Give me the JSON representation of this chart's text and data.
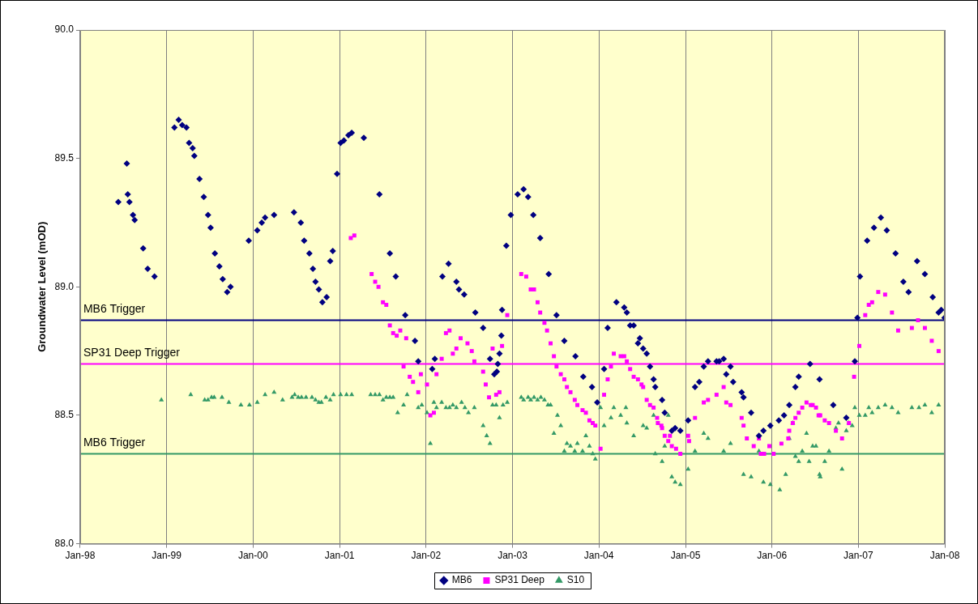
{
  "chart_data": {
    "type": "scatter",
    "ylabel": "Groundwater Level (mOD)",
    "xlim": [
      "1998-01-01",
      "2008-01-01"
    ],
    "xticks": [
      {
        "value": "1998-01-01",
        "label": "Jan-98"
      },
      {
        "value": "1999-01-01",
        "label": "Jan-99"
      },
      {
        "value": "2000-01-01",
        "label": "Jan-00"
      },
      {
        "value": "2001-01-01",
        "label": "Jan-01"
      },
      {
        "value": "2002-01-01",
        "label": "Jan-02"
      },
      {
        "value": "2003-01-01",
        "label": "Jan-03"
      },
      {
        "value": "2004-01-01",
        "label": "Jan-04"
      },
      {
        "value": "2005-01-01",
        "label": "Jan-05"
      },
      {
        "value": "2006-01-01",
        "label": "Jan-06"
      },
      {
        "value": "2007-01-01",
        "label": "Jan-07"
      },
      {
        "value": "2008-01-01",
        "label": "Jan-08"
      }
    ],
    "ylim": [
      88,
      90
    ],
    "yticks": [
      {
        "value": 88,
        "label": "88.0"
      },
      {
        "value": 88.5,
        "label": "88.5"
      },
      {
        "value": 89,
        "label": "89.0"
      },
      {
        "value": 89.5,
        "label": "89.5"
      },
      {
        "value": 90,
        "label": "90.0"
      }
    ],
    "grid": "x",
    "legend": "bottom",
    "series": [
      {
        "name": "MB6",
        "color": "#000080",
        "marker": "diamond",
        "x": [
          "1998-06-11",
          "1998-07-17",
          "1998-07-21",
          "1998-07-28",
          "1998-08-12",
          "1998-08-19",
          "1998-09-24",
          "1998-10-13",
          "1998-11-11",
          "1999-02-03",
          "1999-02-21",
          "1999-03-08",
          "1999-03-26",
          "1999-04-06",
          "1999-04-21",
          "1999-04-28",
          "1999-05-20",
          "1999-06-07",
          "1999-06-25",
          "1999-07-06",
          "1999-07-24",
          "1999-08-12",
          "1999-08-26",
          "1999-09-14",
          "1999-09-28",
          "1999-12-14",
          "2000-01-19",
          "2000-02-07",
          "2000-02-21",
          "2000-03-30",
          "2000-06-22",
          "2000-07-21",
          "2000-08-04",
          "2000-08-26",
          "2000-09-10",
          "2000-09-21",
          "2000-10-05",
          "2000-10-20",
          "2000-11-07",
          "2000-11-22",
          "2000-12-03",
          "2000-12-21",
          "2001-01-05",
          "2001-01-19",
          "2001-02-07",
          "2001-02-21",
          "2001-04-13",
          "2001-06-18",
          "2001-08-01",
          "2001-08-26",
          "2001-10-05",
          "2001-11-15",
          "2001-11-29",
          "2002-01-27",
          "2002-02-07",
          "2002-03-11",
          "2002-04-06",
          "2002-05-09",
          "2002-05-20",
          "2002-06-11",
          "2002-07-28",
          "2002-08-30",
          "2002-09-28",
          "2002-10-16",
          "2002-10-27",
          "2002-10-31",
          "2002-11-07",
          "2002-11-15",
          "2002-11-18",
          "2002-12-06",
          "2002-12-25",
          "2003-01-23",
          "2003-02-17",
          "2003-03-08",
          "2003-03-30",
          "2003-04-28",
          "2003-06-03",
          "2003-07-06",
          "2003-08-08",
          "2003-09-24",
          "2003-10-27",
          "2003-12-03",
          "2003-12-25",
          "2004-01-23",
          "2004-02-07",
          "2004-03-15",
          "2004-04-17",
          "2004-04-28",
          "2004-05-12",
          "2004-05-27",
          "2004-06-14",
          "2004-06-22",
          "2004-07-06",
          "2004-07-21",
          "2004-08-04",
          "2004-08-19",
          "2004-08-26",
          "2004-09-24",
          "2004-10-05",
          "2004-11-04",
          "2004-11-18",
          "2004-12-10",
          "2005-01-12",
          "2005-02-10",
          "2005-02-28",
          "2005-03-19",
          "2005-04-06",
          "2005-05-12",
          "2005-05-23",
          "2005-06-11",
          "2005-06-22",
          "2005-07-10",
          "2005-07-21",
          "2005-08-26",
          "2005-09-03",
          "2005-10-05",
          "2005-11-07",
          "2005-11-26",
          "2005-12-25",
          "2006-01-30",
          "2006-02-21",
          "2006-03-15",
          "2006-04-10",
          "2006-04-24",
          "2006-06-11",
          "2006-07-21",
          "2006-09-17",
          "2006-11-11",
          "2006-12-17",
          "2006-12-28",
          "2007-01-08",
          "2007-02-07",
          "2007-03-08",
          "2007-04-06",
          "2007-05-01",
          "2007-06-07",
          "2007-07-10",
          "2007-08-01",
          "2007-09-06",
          "2007-10-09",
          "2007-11-11",
          "2007-12-06",
          "2007-12-17",
          "2007-12-31"
        ],
        "values": [
          89.33,
          89.48,
          89.36,
          89.33,
          89.28,
          89.26,
          89.15,
          89.07,
          89.04,
          89.62,
          89.65,
          89.63,
          89.62,
          89.56,
          89.54,
          89.51,
          89.42,
          89.35,
          89.28,
          89.23,
          89.13,
          89.08,
          89.03,
          88.98,
          89.0,
          89.18,
          89.22,
          89.25,
          89.27,
          89.28,
          89.29,
          89.25,
          89.18,
          89.13,
          89.07,
          89.02,
          88.99,
          88.94,
          88.96,
          89.1,
          89.14,
          89.44,
          89.56,
          89.57,
          89.59,
          89.6,
          89.58,
          89.36,
          89.13,
          89.04,
          88.89,
          88.79,
          88.71,
          88.68,
          88.72,
          89.04,
          89.09,
          89.02,
          88.99,
          88.97,
          88.9,
          88.84,
          88.72,
          88.66,
          88.67,
          88.7,
          88.74,
          88.81,
          88.91,
          89.16,
          89.28,
          89.36,
          89.38,
          89.35,
          89.28,
          89.19,
          89.05,
          88.89,
          88.79,
          88.73,
          88.65,
          88.61,
          88.55,
          88.68,
          88.84,
          88.94,
          88.92,
          88.9,
          88.85,
          88.85,
          88.78,
          88.8,
          88.76,
          88.74,
          88.69,
          88.64,
          88.61,
          88.56,
          88.51,
          88.44,
          88.45,
          88.44,
          88.48,
          88.61,
          88.63,
          88.69,
          88.71,
          88.71,
          88.71,
          88.72,
          88.66,
          88.69,
          88.63,
          88.59,
          88.57,
          88.51,
          88.42,
          88.44,
          88.46,
          88.48,
          88.5,
          88.54,
          88.61,
          88.65,
          88.7,
          88.64,
          88.54,
          88.49,
          88.71,
          88.88,
          89.04,
          89.18,
          89.23,
          89.27,
          89.22,
          89.13,
          89.02,
          88.98,
          89.1,
          89.05,
          88.96,
          88.9,
          88.91,
          88.88
        ]
      },
      {
        "name": "SP31 Deep",
        "color": "#ff00ff",
        "marker": "square",
        "x": [
          "2001-02-17",
          "2001-03-04",
          "2001-05-16",
          "2001-05-31",
          "2001-06-14",
          "2001-07-03",
          "2001-07-17",
          "2001-08-01",
          "2001-08-15",
          "2001-08-30",
          "2001-09-14",
          "2001-09-28",
          "2001-10-09",
          "2001-10-24",
          "2001-11-07",
          "2001-11-29",
          "2001-12-10",
          "2002-01-05",
          "2002-01-19",
          "2002-02-03",
          "2002-02-14",
          "2002-03-08",
          "2002-03-26",
          "2002-04-10",
          "2002-04-24",
          "2002-05-09",
          "2002-05-27",
          "2002-06-25",
          "2002-07-13",
          "2002-07-24",
          "2002-08-30",
          "2002-09-10",
          "2002-09-24",
          "2002-10-09",
          "2002-10-24",
          "2002-11-07",
          "2002-11-18",
          "2002-12-10",
          "2003-02-07",
          "2003-02-28",
          "2003-03-19",
          "2003-04-02",
          "2003-04-17",
          "2003-04-28",
          "2003-05-16",
          "2003-05-27",
          "2003-06-11",
          "2003-06-25",
          "2003-07-06",
          "2003-07-24",
          "2003-08-08",
          "2003-08-19",
          "2003-09-03",
          "2003-09-21",
          "2003-10-02",
          "2003-10-24",
          "2003-11-07",
          "2003-11-22",
          "2003-12-06",
          "2003-12-17",
          "2004-01-08",
          "2004-01-23",
          "2004-02-07",
          "2004-02-21",
          "2004-03-04",
          "2004-04-02",
          "2004-04-17",
          "2004-04-28",
          "2004-05-12",
          "2004-05-27",
          "2004-06-14",
          "2004-06-29",
          "2004-07-06",
          "2004-07-21",
          "2004-08-04",
          "2004-08-19",
          "2004-09-03",
          "2004-09-06",
          "2004-09-21",
          "2004-09-24",
          "2004-10-05",
          "2004-10-20",
          "2004-10-27",
          "2004-11-04",
          "2004-11-22",
          "2004-12-10",
          "2005-01-12",
          "2005-01-16",
          "2005-02-10",
          "2005-03-19",
          "2005-04-06",
          "2005-05-12",
          "2005-06-11",
          "2005-06-22",
          "2005-07-10",
          "2005-08-26",
          "2005-09-03",
          "2005-09-17",
          "2005-10-16",
          "2005-11-07",
          "2005-11-15",
          "2005-11-29",
          "2005-12-21",
          "2006-01-08",
          "2006-02-10",
          "2006-03-11",
          "2006-03-15",
          "2006-03-30",
          "2006-04-10",
          "2006-04-24",
          "2006-05-09",
          "2006-05-27",
          "2006-06-14",
          "2006-06-22",
          "2006-07-06",
          "2006-07-17",
          "2006-07-24",
          "2006-08-12",
          "2006-08-30",
          "2006-09-28",
          "2006-10-24",
          "2006-11-22",
          "2006-12-14",
          "2007-01-05",
          "2007-01-30",
          "2007-02-14",
          "2007-02-28",
          "2007-03-26",
          "2007-04-24",
          "2007-05-23",
          "2007-06-18",
          "2007-08-15",
          "2007-09-10",
          "2007-10-09",
          "2007-11-07",
          "2007-12-06"
        ],
        "values": [
          89.19,
          89.2,
          89.05,
          89.02,
          89.0,
          88.94,
          88.93,
          88.85,
          88.82,
          88.81,
          88.83,
          88.69,
          88.8,
          88.65,
          88.63,
          88.59,
          88.66,
          88.62,
          88.5,
          88.51,
          88.66,
          88.72,
          88.82,
          88.83,
          88.74,
          88.76,
          88.8,
          88.78,
          88.75,
          88.71,
          88.67,
          88.62,
          88.57,
          88.76,
          88.58,
          88.59,
          88.77,
          88.89,
          89.05,
          89.04,
          88.99,
          88.99,
          88.94,
          88.9,
          88.86,
          88.83,
          88.78,
          88.73,
          88.69,
          88.66,
          88.64,
          88.61,
          88.59,
          88.56,
          88.54,
          88.52,
          88.51,
          88.48,
          88.47,
          88.46,
          88.37,
          88.58,
          88.64,
          88.69,
          88.74,
          88.73,
          88.73,
          88.71,
          88.68,
          88.65,
          88.64,
          88.62,
          88.61,
          88.56,
          88.54,
          88.53,
          88.49,
          88.47,
          88.46,
          88.45,
          88.42,
          88.4,
          88.42,
          88.38,
          88.37,
          88.35,
          88.42,
          88.4,
          88.49,
          88.55,
          88.56,
          88.58,
          88.61,
          88.55,
          88.54,
          88.49,
          88.46,
          88.41,
          88.38,
          88.41,
          88.35,
          88.35,
          88.38,
          88.35,
          88.39,
          88.41,
          88.44,
          88.47,
          88.49,
          88.51,
          88.53,
          88.55,
          88.54,
          88.54,
          88.53,
          88.5,
          88.5,
          88.48,
          88.47,
          88.44,
          88.41,
          88.47,
          88.65,
          88.77,
          88.89,
          88.93,
          88.94,
          88.98,
          88.97,
          88.9,
          88.83,
          88.84,
          88.87,
          88.84,
          88.79,
          88.75
        ]
      },
      {
        "name": "S10",
        "color": "#339966",
        "marker": "triangle",
        "x": [
          "1998-12-10",
          "1999-04-13",
          "1999-06-11",
          "1999-06-25",
          "1999-07-10",
          "1999-07-21",
          "1999-08-23",
          "1999-09-21",
          "1999-11-11",
          "1999-12-17",
          "2000-01-19",
          "2000-02-21",
          "2000-03-30",
          "2000-05-05",
          "2000-06-14",
          "2000-06-25",
          "2000-07-10",
          "2000-07-24",
          "2000-08-12",
          "2000-09-06",
          "2000-09-21",
          "2000-10-05",
          "2000-10-16",
          "2000-11-04",
          "2000-11-22",
          "2000-12-06",
          "2001-01-05",
          "2001-01-30",
          "2001-02-21",
          "2001-05-12",
          "2001-05-31",
          "2001-06-18",
          "2001-07-03",
          "2001-07-17",
          "2001-08-01",
          "2001-08-15",
          "2001-09-03",
          "2001-09-28",
          "2001-10-13",
          "2001-11-29",
          "2001-12-14",
          "2002-01-05",
          "2002-01-19",
          "2002-02-03",
          "2002-02-14",
          "2002-03-08",
          "2002-03-26",
          "2002-04-10",
          "2002-04-24",
          "2002-05-09",
          "2002-05-31",
          "2002-06-14",
          "2002-06-29",
          "2002-07-24",
          "2002-08-30",
          "2002-09-14",
          "2002-09-28",
          "2002-10-09",
          "2002-10-24",
          "2002-11-07",
          "2002-11-22",
          "2002-12-10",
          "2003-02-07",
          "2003-02-17",
          "2003-03-08",
          "2003-03-19",
          "2003-04-02",
          "2003-04-17",
          "2003-05-01",
          "2003-05-16",
          "2003-05-31",
          "2003-06-11",
          "2003-06-25",
          "2003-07-10",
          "2003-07-24",
          "2003-08-08",
          "2003-08-19",
          "2003-09-03",
          "2003-09-21",
          "2003-10-02",
          "2003-10-24",
          "2003-11-07",
          "2003-11-22",
          "2003-12-06",
          "2003-12-17",
          "2004-01-08",
          "2004-01-23",
          "2004-02-21",
          "2004-03-04",
          "2004-04-02",
          "2004-04-24",
          "2004-04-28",
          "2004-05-27",
          "2004-07-06",
          "2004-07-21",
          "2004-08-19",
          "2004-08-26",
          "2004-09-24",
          "2004-10-05",
          "2004-10-20",
          "2004-11-04",
          "2004-11-18",
          "2004-12-10",
          "2005-01-12",
          "2005-02-10",
          "2005-03-19",
          "2005-04-06",
          "2005-06-11",
          "2005-07-10",
          "2005-09-03",
          "2005-10-05",
          "2005-11-07",
          "2005-11-26",
          "2005-12-25",
          "2006-02-03",
          "2006-02-28",
          "2006-03-15",
          "2006-03-30",
          "2006-04-10",
          "2006-04-24",
          "2006-05-09",
          "2006-05-27",
          "2006-06-07",
          "2006-06-22",
          "2006-07-06",
          "2006-07-21",
          "2006-07-24",
          "2006-08-12",
          "2006-08-30",
          "2006-09-28",
          "2006-10-09",
          "2006-10-24",
          "2006-11-11",
          "2006-11-22",
          "2006-12-06",
          "2006-12-17",
          "2007-01-05",
          "2007-01-30",
          "2007-02-14",
          "2007-02-28",
          "2007-03-26",
          "2007-04-24",
          "2007-05-23",
          "2007-06-18",
          "2007-08-15",
          "2007-09-14",
          "2007-10-09",
          "2007-11-07",
          "2007-12-06"
        ],
        "values": [
          88.56,
          88.58,
          88.56,
          88.56,
          88.57,
          88.57,
          88.57,
          88.55,
          88.54,
          88.54,
          88.55,
          88.58,
          88.59,
          88.56,
          88.57,
          88.58,
          88.57,
          88.57,
          88.57,
          88.57,
          88.56,
          88.55,
          88.55,
          88.57,
          88.56,
          88.58,
          88.58,
          88.58,
          88.58,
          88.58,
          88.58,
          88.58,
          88.56,
          88.57,
          88.57,
          88.57,
          88.51,
          88.54,
          88.58,
          88.53,
          88.54,
          88.51,
          88.39,
          88.55,
          88.53,
          88.55,
          88.53,
          88.53,
          88.54,
          88.53,
          88.55,
          88.53,
          88.51,
          88.53,
          88.46,
          88.42,
          88.39,
          88.54,
          88.54,
          88.49,
          88.54,
          88.55,
          88.57,
          88.56,
          88.57,
          88.56,
          88.57,
          88.56,
          88.57,
          88.56,
          88.54,
          88.54,
          88.43,
          88.5,
          88.46,
          88.36,
          88.39,
          88.38,
          88.36,
          88.39,
          88.36,
          88.42,
          88.38,
          88.35,
          88.33,
          88.53,
          88.46,
          88.49,
          88.53,
          88.5,
          88.53,
          88.47,
          88.42,
          88.46,
          88.45,
          88.5,
          88.35,
          88.32,
          88.38,
          88.5,
          88.26,
          88.24,
          88.23,
          88.29,
          88.36,
          88.43,
          88.41,
          88.36,
          88.39,
          88.27,
          88.26,
          88.36,
          88.24,
          88.23,
          88.21,
          88.27,
          88.41,
          88.47,
          88.34,
          88.32,
          88.36,
          88.43,
          88.32,
          88.38,
          88.38,
          88.27,
          88.26,
          88.32,
          88.36,
          88.45,
          88.47,
          88.29,
          88.44,
          88.47,
          88.46,
          88.53,
          88.5,
          88.5,
          88.53,
          88.51,
          88.53,
          88.54,
          88.53,
          88.51,
          88.53,
          88.53,
          88.54,
          88.51,
          88.54
        ]
      }
    ],
    "ref_lines": [
      {
        "axis": "y",
        "value": 88.87,
        "label": "MB6 Trigger",
        "color": "#000080"
      },
      {
        "axis": "y",
        "value": 88.7,
        "label": "SP31 Deep Trigger",
        "color": "#ff00ff"
      },
      {
        "axis": "y",
        "value": 88.35,
        "label": "MB6 Trigger",
        "color": "#339966"
      }
    ]
  }
}
